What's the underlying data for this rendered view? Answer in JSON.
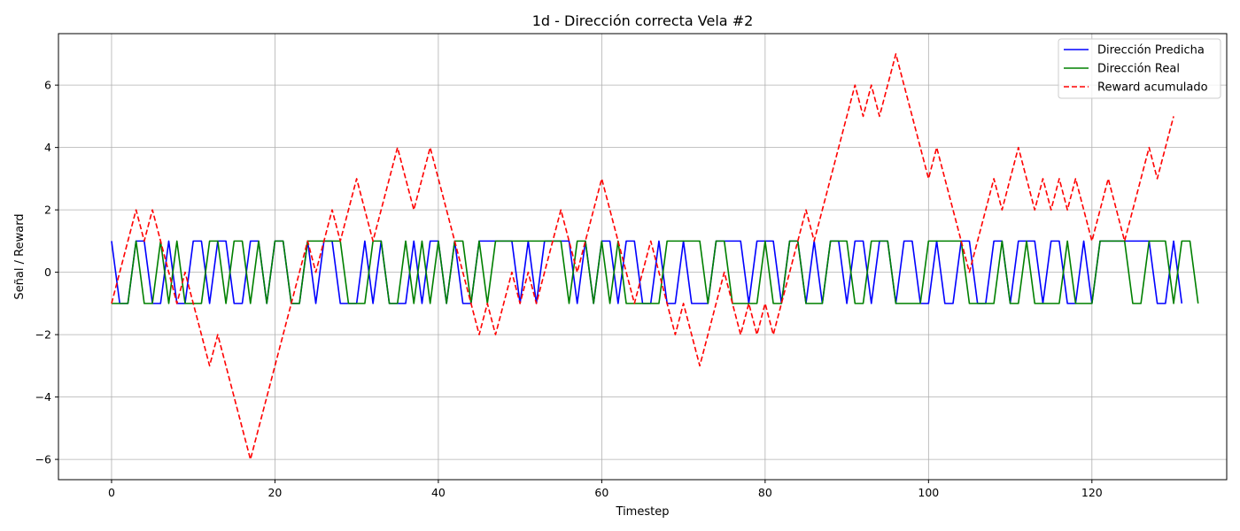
{
  "chart_data": {
    "type": "line",
    "title": "1d - Dirección correcta Vela #2",
    "xlabel": "Timestep",
    "ylabel": "Señal / Reward",
    "xlim": [
      -6.5,
      136.5
    ],
    "ylim": [
      -6.65,
      7.65
    ],
    "xticks": [
      0,
      20,
      40,
      60,
      80,
      100,
      120
    ],
    "yticks": [
      -6,
      -4,
      -2,
      0,
      2,
      4,
      6
    ],
    "xtick_labels": [
      "0",
      "20",
      "40",
      "60",
      "80",
      "100",
      "120"
    ],
    "ytick_labels": [
      "−6",
      "−4",
      "−2",
      "0",
      "2",
      "4",
      "6"
    ],
    "grid": true,
    "legend_position": "top-right",
    "series": [
      {
        "name": "Dirección Predicha",
        "color": "#0000ff",
        "style": "solid",
        "values": [
          1,
          -1,
          -1,
          1,
          1,
          -1,
          -1,
          1,
          -1,
          -1,
          1,
          1,
          -1,
          1,
          1,
          -1,
          -1,
          1,
          1,
          -1,
          1,
          1,
          -1,
          -1,
          1,
          -1,
          1,
          1,
          -1,
          -1,
          -1,
          1,
          -1,
          1,
          -1,
          -1,
          -1,
          1,
          -1,
          1,
          1,
          -1,
          1,
          -1,
          -1,
          1,
          1,
          1,
          1,
          1,
          -1,
          1,
          -1,
          1,
          1,
          1,
          1,
          -1,
          1,
          -1,
          1,
          1,
          -1,
          1,
          1,
          -1,
          -1,
          1,
          -1,
          -1,
          1,
          -1,
          -1,
          -1,
          1,
          1,
          1,
          1,
          -1,
          1,
          1,
          1,
          -1,
          1,
          1,
          -1,
          1,
          -1,
          1,
          1,
          -1,
          1,
          1,
          -1,
          1,
          1,
          -1,
          1,
          1,
          -1,
          -1,
          1,
          -1,
          -1,
          1,
          1,
          -1,
          -1,
          1,
          1,
          -1,
          1,
          1,
          1,
          -1,
          1,
          1,
          -1,
          -1,
          1,
          -1,
          1,
          1,
          1,
          1,
          1,
          1,
          1,
          -1,
          -1,
          1,
          -1
        ]
      },
      {
        "name": "Dirección Real",
        "color": "#008000",
        "style": "solid",
        "values": [
          -1,
          -1,
          -1,
          1,
          -1,
          -1,
          1,
          -1,
          1,
          -1,
          -1,
          -1,
          1,
          1,
          -1,
          1,
          1,
          -1,
          1,
          -1,
          1,
          1,
          -1,
          -1,
          1,
          1,
          1,
          1,
          1,
          -1,
          -1,
          -1,
          1,
          1,
          -1,
          -1,
          1,
          -1,
          1,
          -1,
          1,
          -1,
          1,
          1,
          -1,
          1,
          -1,
          1,
          1,
          1,
          1,
          1,
          1,
          1,
          1,
          1,
          -1,
          1,
          1,
          -1,
          1,
          -1,
          1,
          -1,
          -1,
          -1,
          -1,
          -1,
          1,
          1,
          1,
          1,
          1,
          -1,
          1,
          1,
          -1,
          -1,
          -1,
          -1,
          1,
          -1,
          -1,
          1,
          1,
          -1,
          -1,
          -1,
          1,
          1,
          1,
          -1,
          -1,
          1,
          1,
          1,
          -1,
          -1,
          -1,
          -1,
          1,
          1,
          1,
          1,
          1,
          -1,
          -1,
          -1,
          -1,
          1,
          -1,
          -1,
          1,
          -1,
          -1,
          -1,
          -1,
          1,
          -1,
          -1,
          -1,
          1,
          1,
          1,
          1,
          -1,
          -1,
          1,
          1,
          1,
          -1,
          1,
          1,
          -1
        ]
      },
      {
        "name": "Reward acumulado",
        "color": "#ff0000",
        "style": "dashed",
        "values": [
          -1,
          0,
          1,
          2,
          1,
          2,
          1,
          0,
          -1,
          0,
          -1,
          -2,
          -3,
          -2,
          -3,
          -4,
          -5,
          -6,
          -5,
          -4,
          -3,
          -2,
          -1,
          0,
          1,
          0,
          1,
          2,
          1,
          2,
          3,
          2,
          1,
          2,
          3,
          4,
          3,
          2,
          3,
          4,
          3,
          2,
          1,
          0,
          -1,
          -2,
          -1,
          -2,
          -1,
          0,
          -1,
          0,
          -1,
          0,
          1,
          2,
          1,
          0,
          1,
          2,
          3,
          2,
          1,
          0,
          -1,
          0,
          1,
          0,
          -1,
          -2,
          -1,
          -2,
          -3,
          -2,
          -1,
          0,
          -1,
          -2,
          -1,
          -2,
          -1,
          -2,
          -1,
          0,
          1,
          2,
          1,
          2,
          3,
          4,
          5,
          6,
          5,
          6,
          5,
          6,
          7,
          6,
          5,
          4,
          3,
          4,
          3,
          2,
          1,
          0,
          1,
          2,
          3,
          2,
          3,
          4,
          3,
          2,
          3,
          2,
          3,
          2,
          3,
          2,
          1,
          2,
          3,
          2,
          1,
          2,
          3,
          4,
          3,
          4,
          5
        ]
      }
    ]
  }
}
